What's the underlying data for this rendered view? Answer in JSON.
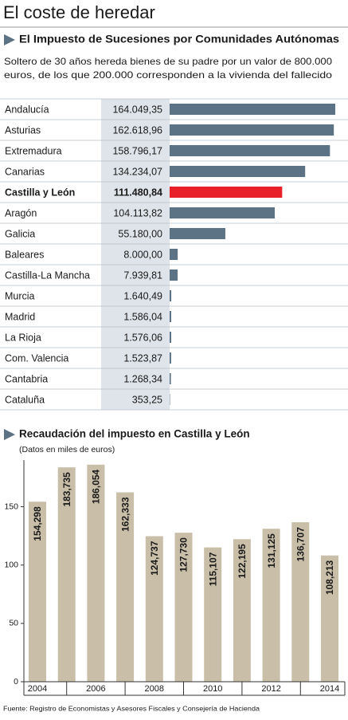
{
  "header": "El coste de heredar",
  "source": "Fuente: Registro de Economistas y Asesores Fiscales y Consejería de Hacienda",
  "chart_data": [
    {
      "type": "hbar",
      "title": "El Impuesto de Sucesiones por Comunidades Autónomas",
      "subtitle": [
        "Soltero de 30 años hereda bienes de su padre por un valor de 800.000",
        "euros, de los que 200.000 corresponden a la vivienda del fallecido"
      ],
      "categories": [
        "Andalucía",
        "Asturias",
        "Extremadura",
        "Canarias",
        "Castilla y León",
        "Aragón",
        "Galicia",
        "Baleares",
        "Castilla-La Mancha",
        "Murcia",
        "Madrid",
        "La Rioja",
        "Com. Valencia",
        "Cantabria",
        "Cataluña"
      ],
      "values": [
        164049.35,
        162618.96,
        158796.17,
        134234.07,
        111480.84,
        104113.82,
        55180.0,
        8000.0,
        7939.81,
        1640.49,
        1586.04,
        1576.06,
        1523.87,
        1268.34,
        353.25
      ],
      "value_labels": [
        "164.049,35",
        "162.618,96",
        "158.796,17",
        "134.234,07",
        "111.480,84",
        "104.113,82",
        "55.180,00",
        "8.000,00",
        "7.939,81",
        "1.640,49",
        "1.586,04",
        "1.576,06",
        "1.523,87",
        "1.268,34",
        "353,25"
      ],
      "colors": [
        "#5b7384",
        "#5b7384",
        "#5b7384",
        "#5b7384",
        "#e8202a",
        "#5b7384",
        "#5b7384",
        "#5b7384",
        "#5b7384",
        "#5b7384",
        "#5b7384",
        "#5b7384",
        "#5b7384",
        "#5b7384",
        "#5b7384"
      ]
    },
    {
      "type": "bar",
      "title": "Recaudación del impuesto en Castilla y León",
      "subtitle": "(Datos en miles de euros)",
      "categories": [
        "2004",
        null,
        "2006",
        null,
        "2008",
        null,
        "2010",
        null,
        "2012",
        null,
        "2014"
      ],
      "values": [
        154.298,
        183.735,
        186.054,
        162.333,
        124.737,
        127.73,
        115.107,
        122.195,
        131.125,
        136.707,
        108.213
      ],
      "value_labels": [
        "154,298",
        "183,735",
        "186,054",
        "162,333",
        "124,737",
        "127,730",
        "115,107",
        "122,195",
        "131,125",
        "136,707",
        "108,213"
      ],
      "color": "#c9bea8",
      "ylim": [
        0,
        190
      ],
      "yticks": [
        0,
        50,
        100,
        150
      ],
      "grid": false
    }
  ]
}
